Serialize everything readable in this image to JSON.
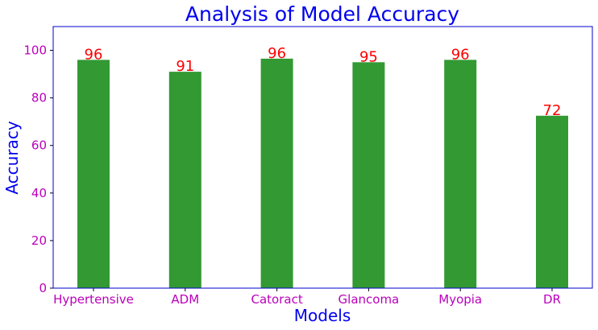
{
  "chart_data": {
    "type": "bar",
    "title": "Analysis of Model Accuracy",
    "xlabel": "Models",
    "ylabel": "Accuracy",
    "categories": [
      "Hypertensive",
      "ADM",
      "Catoract",
      "Glancoma",
      "Myopia",
      "DR"
    ],
    "values": [
      96,
      91,
      96.5,
      95,
      96,
      72.5
    ],
    "data_labels": [
      "96",
      "91",
      "96",
      "95",
      "96",
      "72"
    ],
    "ylim": [
      0,
      110
    ],
    "yticks": [
      0,
      20,
      40,
      60,
      80,
      100
    ],
    "grid": false,
    "legend": "none"
  },
  "colors": {
    "bar": "#339933",
    "title": "#0000ee",
    "axis_title": "#0000ee",
    "tick_label": "#bb00bb",
    "data_label": "#ff0000",
    "frame": "#0000cc"
  }
}
